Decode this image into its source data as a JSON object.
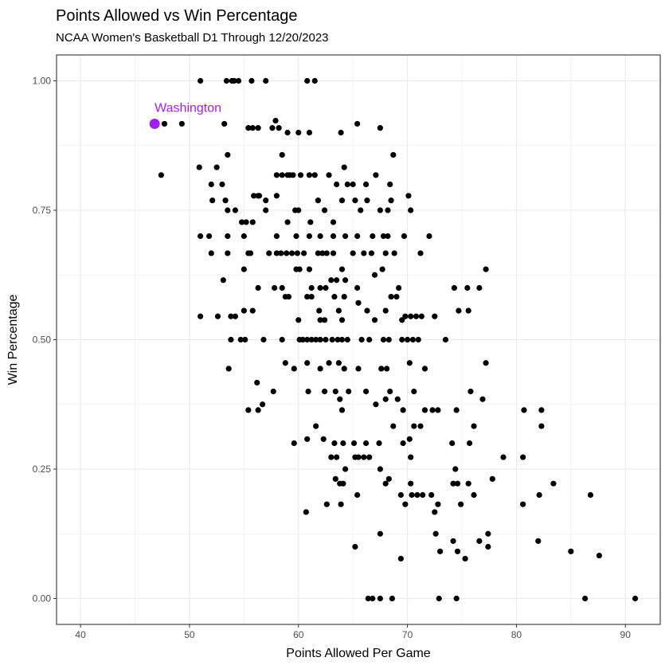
{
  "chart_data": {
    "type": "scatter",
    "title": "Points Allowed vs Win Percentage",
    "subtitle": "NCAA Women's Basketball D1 Through 12/20/2023",
    "xlabel": "Points Allowed Per Game",
    "ylabel": "Win Percentage",
    "xlim": [
      37.8,
      93.2
    ],
    "ylim": [
      -0.05,
      1.05
    ],
    "x_ticks": [
      40,
      50,
      60,
      70,
      80,
      90
    ],
    "y_ticks": [
      0,
      0.25,
      0.5,
      0.75,
      1
    ],
    "x_tick_labels": [
      "40",
      "50",
      "60",
      "70",
      "80",
      "90"
    ],
    "y_tick_labels": [
      "0.00",
      "0.25",
      "0.50",
      "0.75",
      "1.00"
    ],
    "grid": true,
    "colors": {
      "point": "#000000",
      "highlight": "#a020f0",
      "grid": "#ebebeb",
      "panel_border": "#333333"
    },
    "highlight": {
      "label": "Washington",
      "x": 46.8,
      "y": 0.917
    },
    "points": [
      [
        51.0,
        1.0
      ],
      [
        53.4,
        1.0
      ],
      [
        53.9,
        1.0
      ],
      [
        54.1,
        1.0
      ],
      [
        54.5,
        1.0
      ],
      [
        55.7,
        1.0
      ],
      [
        57.0,
        1.0
      ],
      [
        60.8,
        1.0
      ],
      [
        61.5,
        1.0
      ],
      [
        47.7,
        0.917
      ],
      [
        49.3,
        0.917
      ],
      [
        53.2,
        0.917
      ],
      [
        55.4,
        0.909
      ],
      [
        55.8,
        0.909
      ],
      [
        56.3,
        0.909
      ],
      [
        57.6,
        0.909
      ],
      [
        57.9,
        0.923
      ],
      [
        58.2,
        0.909
      ],
      [
        59.0,
        0.9
      ],
      [
        60.0,
        0.9
      ],
      [
        61.0,
        0.9
      ],
      [
        63.9,
        0.9
      ],
      [
        65.4,
        0.917
      ],
      [
        67.5,
        0.909
      ],
      [
        47.4,
        0.818
      ],
      [
        50.9,
        0.833
      ],
      [
        52.5,
        0.833
      ],
      [
        53.0,
        0.8
      ],
      [
        53.5,
        0.857
      ],
      [
        58.5,
        0.857
      ],
      [
        59.2,
        0.818
      ],
      [
        64.2,
        0.833
      ],
      [
        68.7,
        0.857
      ],
      [
        52.1,
        0.769
      ],
      [
        52.0,
        0.8
      ],
      [
        53.3,
        0.769
      ],
      [
        53.5,
        0.75
      ],
      [
        54.2,
        0.75
      ],
      [
        55.9,
        0.778
      ],
      [
        56.4,
        0.778
      ],
      [
        57.0,
        0.769
      ],
      [
        58.0,
        0.818
      ],
      [
        58.5,
        0.818
      ],
      [
        59.0,
        0.818
      ],
      [
        59.5,
        0.818
      ],
      [
        60.2,
        0.818
      ],
      [
        61.0,
        0.818
      ],
      [
        61.5,
        0.818
      ],
      [
        62.8,
        0.818
      ],
      [
        63.5,
        0.8
      ],
      [
        64.5,
        0.8
      ],
      [
        65.0,
        0.8
      ],
      [
        66.2,
        0.8
      ],
      [
        67.1,
        0.818
      ],
      [
        68.4,
        0.8
      ],
      [
        54.8,
        0.727
      ],
      [
        55.2,
        0.727
      ],
      [
        55.8,
        0.727
      ],
      [
        56.3,
        0.778
      ],
      [
        57.0,
        0.75
      ],
      [
        58.0,
        0.778
      ],
      [
        59.0,
        0.727
      ],
      [
        59.7,
        0.75
      ],
      [
        60.0,
        0.75
      ],
      [
        61.1,
        0.727
      ],
      [
        61.8,
        0.769
      ],
      [
        62.4,
        0.75
      ],
      [
        63.2,
        0.727
      ],
      [
        64.0,
        0.769
      ],
      [
        65.2,
        0.769
      ],
      [
        65.7,
        0.75
      ],
      [
        66.3,
        0.769
      ],
      [
        67.5,
        0.75
      ],
      [
        68.5,
        0.769
      ],
      [
        70.1,
        0.778
      ],
      [
        70.3,
        0.75
      ],
      [
        68.2,
        0.75
      ],
      [
        51.0,
        0.7
      ],
      [
        51.8,
        0.7
      ],
      [
        53.5,
        0.7
      ],
      [
        55.0,
        0.7
      ],
      [
        58.0,
        0.7
      ],
      [
        59.8,
        0.7
      ],
      [
        61.0,
        0.7
      ],
      [
        62.0,
        0.7
      ],
      [
        63.2,
        0.7
      ],
      [
        64.3,
        0.7
      ],
      [
        65.4,
        0.7
      ],
      [
        66.8,
        0.7
      ],
      [
        67.8,
        0.7
      ],
      [
        68.2,
        0.7
      ],
      [
        69.7,
        0.7
      ],
      [
        72.0,
        0.7
      ],
      [
        52.0,
        0.667
      ],
      [
        53.5,
        0.667
      ],
      [
        55.4,
        0.667
      ],
      [
        55.6,
        0.667
      ],
      [
        57.3,
        0.667
      ],
      [
        58.0,
        0.667
      ],
      [
        58.4,
        0.667
      ],
      [
        58.9,
        0.667
      ],
      [
        59.4,
        0.667
      ],
      [
        59.9,
        0.667
      ],
      [
        60.5,
        0.667
      ],
      [
        61.8,
        0.667
      ],
      [
        62.2,
        0.667
      ],
      [
        62.6,
        0.667
      ],
      [
        63.2,
        0.667
      ],
      [
        64.0,
        0.636
      ],
      [
        65.0,
        0.667
      ],
      [
        66.0,
        0.667
      ],
      [
        66.7,
        0.667
      ],
      [
        68.0,
        0.667
      ],
      [
        68.8,
        0.667
      ],
      [
        71.2,
        0.667
      ],
      [
        53.1,
        0.615
      ],
      [
        55.0,
        0.636
      ],
      [
        56.3,
        0.6
      ],
      [
        57.8,
        0.6
      ],
      [
        58.5,
        0.6
      ],
      [
        59.8,
        0.636
      ],
      [
        60.1,
        0.636
      ],
      [
        61.0,
        0.636
      ],
      [
        61.2,
        0.6
      ],
      [
        62.0,
        0.6
      ],
      [
        62.5,
        0.6
      ],
      [
        63.0,
        0.615
      ],
      [
        63.5,
        0.615
      ],
      [
        64.3,
        0.615
      ],
      [
        65.4,
        0.6
      ],
      [
        67.0,
        0.625
      ],
      [
        67.7,
        0.636
      ],
      [
        69.2,
        0.6
      ],
      [
        74.3,
        0.6
      ],
      [
        75.5,
        0.6
      ],
      [
        76.6,
        0.6
      ],
      [
        77.2,
        0.636
      ],
      [
        51.0,
        0.545
      ],
      [
        52.6,
        0.545
      ],
      [
        53.8,
        0.545
      ],
      [
        54.2,
        0.545
      ],
      [
        55.0,
        0.556
      ],
      [
        55.8,
        0.556
      ],
      [
        58.8,
        0.583
      ],
      [
        59.1,
        0.583
      ],
      [
        60.8,
        0.583
      ],
      [
        61.2,
        0.583
      ],
      [
        61.9,
        0.556
      ],
      [
        62.4,
        0.538
      ],
      [
        63.3,
        0.583
      ],
      [
        63.7,
        0.556
      ],
      [
        64.2,
        0.583
      ],
      [
        65.5,
        0.571
      ],
      [
        66.3,
        0.556
      ],
      [
        68.0,
        0.556
      ],
      [
        68.5,
        0.583
      ],
      [
        69.0,
        0.583
      ],
      [
        69.8,
        0.545
      ],
      [
        70.3,
        0.545
      ],
      [
        70.8,
        0.545
      ],
      [
        71.3,
        0.545
      ],
      [
        72.5,
        0.545
      ],
      [
        74.7,
        0.556
      ],
      [
        75.6,
        0.556
      ],
      [
        53.6,
        0.444
      ],
      [
        53.8,
        0.5
      ],
      [
        54.7,
        0.5
      ],
      [
        55.1,
        0.5
      ],
      [
        56.8,
        0.5
      ],
      [
        58.5,
        0.5
      ],
      [
        60.1,
        0.5
      ],
      [
        60.4,
        0.5
      ],
      [
        60.8,
        0.5
      ],
      [
        61.2,
        0.5
      ],
      [
        61.6,
        0.5
      ],
      [
        62.0,
        0.5
      ],
      [
        62.5,
        0.5
      ],
      [
        63.1,
        0.5
      ],
      [
        63.6,
        0.5
      ],
      [
        64.0,
        0.5
      ],
      [
        64.5,
        0.5
      ],
      [
        65.8,
        0.5
      ],
      [
        66.5,
        0.5
      ],
      [
        67.8,
        0.5
      ],
      [
        68.3,
        0.5
      ],
      [
        69.5,
        0.5
      ],
      [
        70.0,
        0.5
      ],
      [
        70.5,
        0.5
      ],
      [
        71.0,
        0.5
      ],
      [
        73.5,
        0.5
      ],
      [
        60.0,
        0.538
      ],
      [
        62.0,
        0.538
      ],
      [
        64.0,
        0.538
      ],
      [
        67.0,
        0.538
      ],
      [
        69.5,
        0.538
      ],
      [
        56.2,
        0.417
      ],
      [
        57.7,
        0.4
      ],
      [
        58.8,
        0.455
      ],
      [
        59.6,
        0.444
      ],
      [
        60.8,
        0.455
      ],
      [
        62.0,
        0.444
      ],
      [
        62.8,
        0.455
      ],
      [
        63.7,
        0.455
      ],
      [
        64.2,
        0.444
      ],
      [
        65.5,
        0.444
      ],
      [
        67.6,
        0.444
      ],
      [
        68.1,
        0.444
      ],
      [
        70.2,
        0.455
      ],
      [
        71.6,
        0.444
      ],
      [
        77.2,
        0.455
      ],
      [
        55.4,
        0.364
      ],
      [
        56.3,
        0.364
      ],
      [
        56.7,
        0.375
      ],
      [
        60.9,
        0.4
      ],
      [
        62.4,
        0.4
      ],
      [
        63.4,
        0.4
      ],
      [
        63.8,
        0.385
      ],
      [
        64.0,
        0.364
      ],
      [
        64.6,
        0.4
      ],
      [
        66.2,
        0.4
      ],
      [
        67.1,
        0.375
      ],
      [
        68.0,
        0.385
      ],
      [
        68.4,
        0.4
      ],
      [
        69.1,
        0.385
      ],
      [
        69.6,
        0.364
      ],
      [
        70.6,
        0.4
      ],
      [
        71.6,
        0.364
      ],
      [
        72.3,
        0.364
      ],
      [
        72.8,
        0.364
      ],
      [
        74.5,
        0.364
      ],
      [
        75.8,
        0.4
      ],
      [
        76.9,
        0.385
      ],
      [
        80.7,
        0.364
      ],
      [
        82.3,
        0.364
      ],
      [
        59.6,
        0.3
      ],
      [
        60.8,
        0.308
      ],
      [
        61.6,
        0.333
      ],
      [
        62.3,
        0.308
      ],
      [
        63.3,
        0.3
      ],
      [
        64.1,
        0.3
      ],
      [
        65.1,
        0.3
      ],
      [
        66.2,
        0.3
      ],
      [
        67.4,
        0.3
      ],
      [
        68.7,
        0.333
      ],
      [
        69.6,
        0.3
      ],
      [
        70.2,
        0.308
      ],
      [
        70.6,
        0.333
      ],
      [
        71.2,
        0.333
      ],
      [
        74.1,
        0.3
      ],
      [
        75.7,
        0.3
      ],
      [
        76.1,
        0.333
      ],
      [
        82.3,
        0.333
      ],
      [
        63.0,
        0.273
      ],
      [
        63.5,
        0.273
      ],
      [
        65.2,
        0.273
      ],
      [
        65.5,
        0.273
      ],
      [
        66.0,
        0.273
      ],
      [
        66.5,
        0.273
      ],
      [
        70.3,
        0.273
      ],
      [
        78.8,
        0.273
      ],
      [
        80.6,
        0.273
      ],
      [
        62.6,
        0.182
      ],
      [
        63.4,
        0.231
      ],
      [
        63.8,
        0.222
      ],
      [
        64.1,
        0.222
      ],
      [
        64.3,
        0.25
      ],
      [
        65.4,
        0.2
      ],
      [
        67.5,
        0.25
      ],
      [
        68.0,
        0.222
      ],
      [
        68.3,
        0.231
      ],
      [
        69.4,
        0.2
      ],
      [
        69.8,
        0.182
      ],
      [
        70.3,
        0.222
      ],
      [
        70.4,
        0.2
      ],
      [
        70.9,
        0.2
      ],
      [
        71.4,
        0.2
      ],
      [
        72.2,
        0.2
      ],
      [
        72.8,
        0.182
      ],
      [
        74.2,
        0.222
      ],
      [
        74.4,
        0.25
      ],
      [
        74.6,
        0.222
      ],
      [
        74.9,
        0.182
      ],
      [
        75.6,
        0.222
      ],
      [
        76.1,
        0.2
      ],
      [
        77.8,
        0.231
      ],
      [
        80.6,
        0.182
      ],
      [
        82.1,
        0.2
      ],
      [
        83.4,
        0.222
      ],
      [
        86.8,
        0.2
      ],
      [
        60.7,
        0.167
      ],
      [
        72.5,
        0.167
      ],
      [
        63.9,
        0.182
      ],
      [
        65.2,
        0.1
      ],
      [
        67.5,
        0.125
      ],
      [
        69.4,
        0.077
      ],
      [
        72.6,
        0.125
      ],
      [
        73.0,
        0.091
      ],
      [
        74.2,
        0.111
      ],
      [
        74.6,
        0.091
      ],
      [
        75.3,
        0.077
      ],
      [
        76.6,
        0.111
      ],
      [
        77.4,
        0.125
      ],
      [
        77.4,
        0.1
      ],
      [
        82.0,
        0.111
      ],
      [
        85.0,
        0.091
      ],
      [
        87.6,
        0.083
      ],
      [
        66.4,
        0.0
      ],
      [
        66.8,
        0.0
      ],
      [
        67.5,
        0.0
      ],
      [
        68.6,
        0.0
      ],
      [
        72.9,
        0.0
      ],
      [
        74.5,
        0.0
      ],
      [
        86.3,
        0.0
      ],
      [
        90.9,
        0.0
      ]
    ]
  }
}
